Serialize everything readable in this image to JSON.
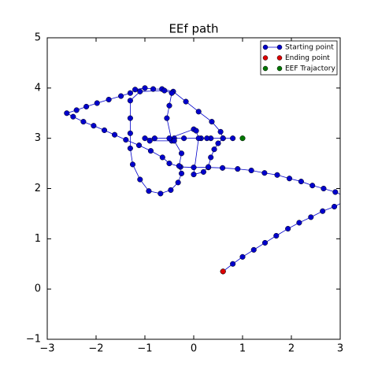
{
  "chart_data": {
    "type": "scatter",
    "title": "EEf path",
    "series": [
      {
        "name": "Starting point",
        "color": "#0000cc",
        "x": [
          0.6,
          0.8,
          1.0,
          1.23,
          1.46,
          1.69,
          1.93,
          2.16,
          2.4,
          2.64,
          2.88,
          3.2,
          2.9,
          2.66,
          2.43,
          2.2,
          1.96,
          1.71,
          1.45,
          1.18,
          0.9,
          0.59,
          0.3,
          0.0,
          -0.27,
          -0.5,
          -0.64,
          -0.88,
          -1.12,
          -1.39,
          -1.62,
          -1.83,
          -2.05,
          -2.26,
          -2.47,
          -2.6,
          -2.4,
          -2.2,
          -1.98,
          -1.74,
          -1.49,
          -1.3,
          -1.2,
          -1.0,
          -0.83,
          -0.65,
          -0.42,
          -0.16,
          0.1,
          0.37,
          0.55,
          0.6,
          0.35,
          0.27,
          0.15,
          -0.2,
          -0.4,
          -0.8,
          -1.0,
          -0.9,
          -0.45,
          -0.55,
          -0.5,
          -0.45,
          -0.6,
          -1.1,
          -1.3,
          -1.3,
          -1.3,
          -1.3,
          -1.25,
          -1.1,
          -0.92,
          -0.68,
          -0.47,
          -0.32,
          -0.25,
          -0.3,
          -0.25,
          -0.4,
          -0.5,
          0.0,
          0.05,
          0.1,
          0.0,
          0.2,
          0.3,
          0.35,
          0.42,
          0.5,
          0.6,
          0.8
        ],
        "values": [
          0.35,
          0.5,
          0.64,
          0.78,
          0.92,
          1.06,
          1.2,
          1.32,
          1.43,
          1.55,
          1.64,
          1.8,
          1.93,
          2.0,
          2.06,
          2.14,
          2.2,
          2.27,
          2.31,
          2.36,
          2.39,
          2.41,
          2.42,
          2.42,
          2.43,
          2.5,
          2.62,
          2.75,
          2.86,
          2.97,
          3.07,
          3.16,
          3.25,
          3.33,
          3.43,
          3.5,
          3.56,
          3.63,
          3.7,
          3.77,
          3.84,
          3.9,
          3.97,
          4.0,
          3.98,
          3.98,
          3.93,
          3.73,
          3.53,
          3.33,
          3.13,
          3.0,
          3.0,
          3.0,
          3.0,
          3.0,
          3.0,
          3.0,
          3.0,
          2.95,
          2.95,
          3.4,
          3.65,
          3.9,
          3.95,
          3.93,
          3.75,
          3.4,
          3.1,
          2.8,
          2.48,
          2.18,
          1.95,
          1.9,
          1.97,
          2.12,
          2.3,
          2.45,
          2.7,
          2.95,
          3.0,
          3.18,
          3.15,
          3.0,
          2.28,
          2.33,
          2.43,
          2.62,
          2.78,
          2.9,
          3.0,
          3.0
        ]
      },
      {
        "name": "Ending point",
        "color": "#dd0000",
        "x": [
          0.6
        ],
        "values": [
          0.35
        ]
      },
      {
        "name": "EEF Trajactory",
        "color": "#007700",
        "x": [
          1.0
        ],
        "values": [
          3.0
        ]
      }
    ],
    "xlim": [
      -3,
      3
    ],
    "xticks": [
      {
        "value": -3,
        "label": "−3"
      },
      {
        "value": -2,
        "label": "−2"
      },
      {
        "value": -1,
        "label": "−1"
      },
      0,
      1,
      2,
      3
    ],
    "ylim": [
      -1,
      5
    ],
    "yticks": [
      {
        "value": -1,
        "label": "−1"
      },
      0,
      1,
      2,
      3,
      4,
      5
    ],
    "legend": "upper right"
  }
}
